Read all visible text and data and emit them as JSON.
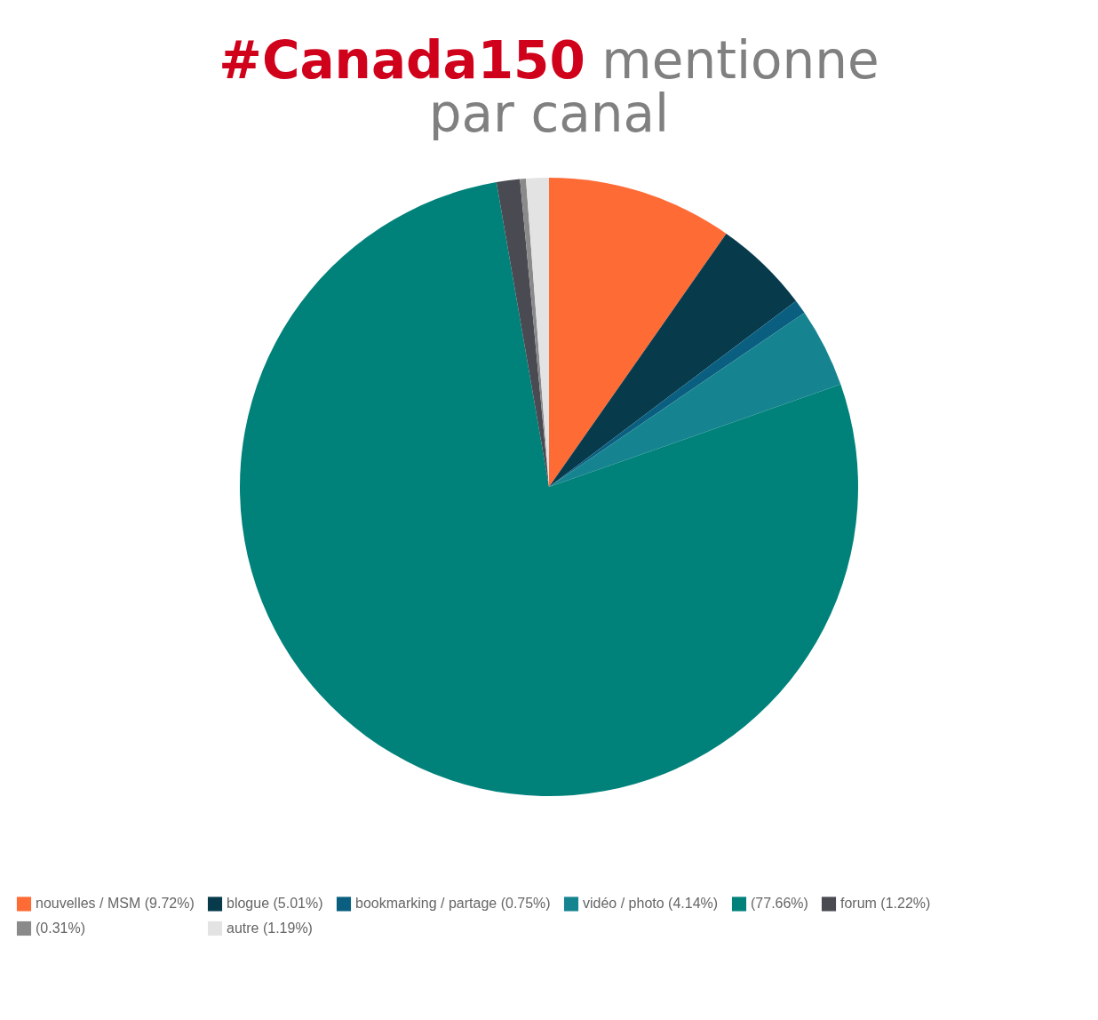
{
  "chart_data": {
    "type": "pie",
    "title": "#Canada150 mentionne par canal",
    "categories": [
      "nouvelles / MSM (9.72%)",
      "blogue (5.01%)",
      "bookmarking / partage (0.75%)",
      "vidéo / photo (4.14%)",
      "(77.66%)",
      "forum (1.22%)",
      "(0.31%)",
      "autre (1.19%)"
    ],
    "values": [
      9.72,
      5.01,
      0.75,
      4.14,
      77.66,
      1.22,
      0.31,
      1.19
    ],
    "colors": [
      "#ff6b35",
      "#073b4c",
      "#0a5f80",
      "#168490",
      "#00827b",
      "#4a4a52",
      "#8a8a8a",
      "#e3e3e3"
    ],
    "legend": "bottom"
  }
}
